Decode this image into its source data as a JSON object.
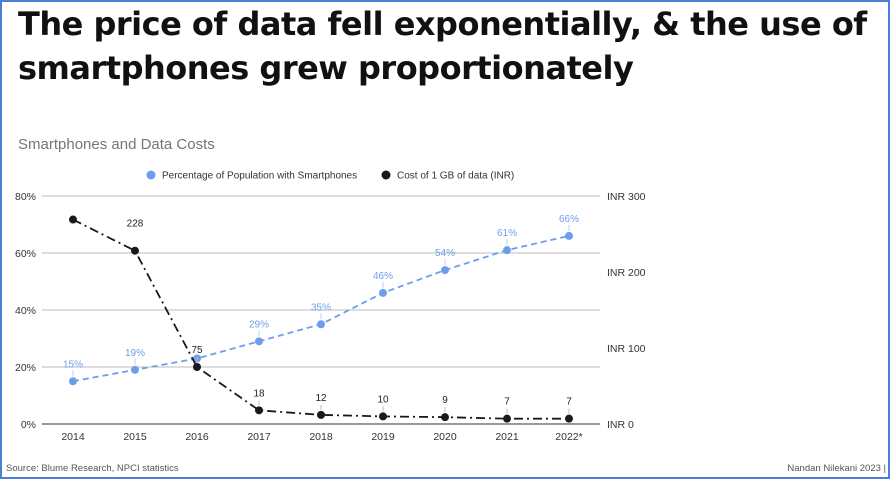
{
  "slide": {
    "title_line1": "The price of data fell exponentially, & the use of",
    "title_line2": "smartphones grew proportionately",
    "source": "Source: Blume Research, NPCI statistics",
    "credit": "Nandan Nilekani 2023 |"
  },
  "chart_data": {
    "type": "line",
    "title": "Smartphones and Data Costs",
    "categories": [
      "2014",
      "2015",
      "2016",
      "2017",
      "2018",
      "2019",
      "2020",
      "2021",
      "2022*"
    ],
    "series": [
      {
        "name": "Percentage of Population with Smartphones",
        "axis": "left",
        "color": "#6d9eeb",
        "line_style": "dashed",
        "values": [
          15,
          19,
          23,
          29,
          35,
          46,
          54,
          61,
          66
        ],
        "labels": [
          "15%",
          "19%",
          "",
          "29%",
          "35%",
          "46%",
          "54%",
          "61%",
          "66%"
        ]
      },
      {
        "name": "Cost of 1 GB of data (INR)",
        "axis": "right",
        "color": "#1a1a1a",
        "line_style": "dash-dot",
        "values": [
          269,
          228,
          75,
          18,
          12,
          10,
          9,
          7,
          7
        ],
        "labels": [
          "",
          "228",
          "75",
          "18",
          "12",
          "10",
          "9",
          "7",
          "7"
        ]
      }
    ],
    "y_left": {
      "min": 0,
      "max": 80,
      "ticks": [
        0,
        20,
        40,
        60,
        80
      ],
      "tick_labels": [
        "0%",
        "20%",
        "40%",
        "60%",
        "80%"
      ]
    },
    "y_right": {
      "min": 0,
      "max": 300,
      "ticks": [
        0,
        100,
        200,
        300
      ],
      "tick_labels": [
        "INR 0",
        "INR 100",
        "INR 200",
        "INR 300"
      ]
    },
    "grid": true,
    "legend_position": "top"
  }
}
